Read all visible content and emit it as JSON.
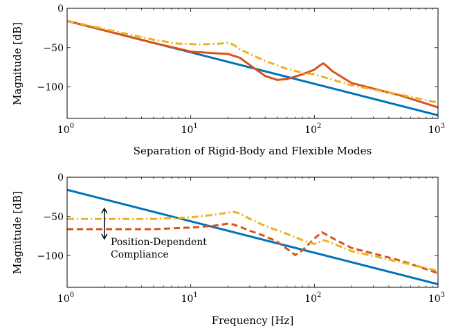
{
  "chart_data": [
    {
      "type": "line",
      "x_scale": "log",
      "xlim": [
        1,
        1000
      ],
      "ylim": [
        -140,
        0
      ],
      "ylabel": "Magnitude [dB]",
      "xlabel": "Separation of Rigid-Body and Flexible Modes",
      "y_ticks": [
        0,
        -50,
        -100
      ],
      "y_tick_labels": [
        "0",
        "−50",
        "−100"
      ],
      "x_ticks": [
        1,
        10,
        100,
        1000
      ],
      "x_tick_bases": [
        "10",
        "10",
        "10",
        "10"
      ],
      "x_tick_exps": [
        "0",
        "1",
        "2",
        "3"
      ],
      "series": [
        {
          "color": "#0072BD",
          "dash": "solid",
          "x": [
            1,
            1000
          ],
          "y": [
            -16,
            -136
          ]
        },
        {
          "color": "#D95319",
          "dash": "solid",
          "x": [
            1,
            5,
            10,
            15,
            20,
            25,
            30,
            40,
            50,
            60,
            80,
            100,
            110,
            118,
            125,
            140,
            200,
            500,
            1000
          ],
          "y": [
            -16,
            -44,
            -55,
            -57,
            -58,
            -63,
            -72,
            -86,
            -91,
            -90,
            -84,
            -78,
            -73,
            -70,
            -73,
            -80,
            -95,
            -111,
            -126
          ]
        },
        {
          "color": "#EDB120",
          "dash": "dashdot",
          "x": [
            1,
            5,
            8,
            12,
            17,
            20,
            22,
            25,
            30,
            40,
            60,
            80,
            100,
            200,
            500,
            1000
          ],
          "y": [
            -16,
            -40,
            -45,
            -46,
            -45,
            -44,
            -46,
            -52,
            -58,
            -67,
            -77,
            -82,
            -84,
            -98,
            -110,
            -120
          ]
        }
      ]
    },
    {
      "type": "line",
      "x_scale": "log",
      "xlim": [
        1,
        1000
      ],
      "ylim": [
        -140,
        0
      ],
      "ylabel": "Magnitude [dB]",
      "xlabel": "Frequency [Hz]",
      "y_ticks": [
        0,
        -50,
        -100
      ],
      "y_tick_labels": [
        "0",
        "−50",
        "−100"
      ],
      "x_ticks": [
        1,
        10,
        100,
        1000
      ],
      "x_tick_bases": [
        "10",
        "10",
        "10",
        "10"
      ],
      "x_tick_exps": [
        "0",
        "1",
        "2",
        "3"
      ],
      "annotation": {
        "lines": [
          "Position-Dependent",
          "Compliance"
        ],
        "arrow_x": 2,
        "arrow_y": [
          -52,
          -66
        ]
      },
      "series": [
        {
          "color": "#0072BD",
          "dash": "solid",
          "x": [
            1,
            1000
          ],
          "y": [
            -16,
            -136
          ]
        },
        {
          "color": "#D95319",
          "dash": "dashed",
          "x": [
            1,
            5,
            10,
            15,
            20,
            22,
            25,
            30,
            40,
            50,
            60,
            70,
            80,
            100,
            115,
            125,
            150,
            200,
            500,
            1000
          ],
          "y": [
            -66,
            -66,
            -64,
            -62,
            -59,
            -60,
            -63,
            -68,
            -75,
            -82,
            -91,
            -99,
            -93,
            -78,
            -70,
            -73,
            -80,
            -90,
            -106,
            -122
          ]
        },
        {
          "color": "#EDB120",
          "dash": "dashdot",
          "x": [
            1,
            5,
            10,
            15,
            20,
            22,
            25,
            30,
            40,
            60,
            80,
            100,
            120,
            140,
            200,
            500,
            1000
          ],
          "y": [
            -53,
            -53,
            -51,
            -48,
            -45,
            -44,
            -46,
            -53,
            -62,
            -72,
            -80,
            -85,
            -80,
            -84,
            -94,
            -108,
            -119
          ]
        }
      ]
    }
  ]
}
